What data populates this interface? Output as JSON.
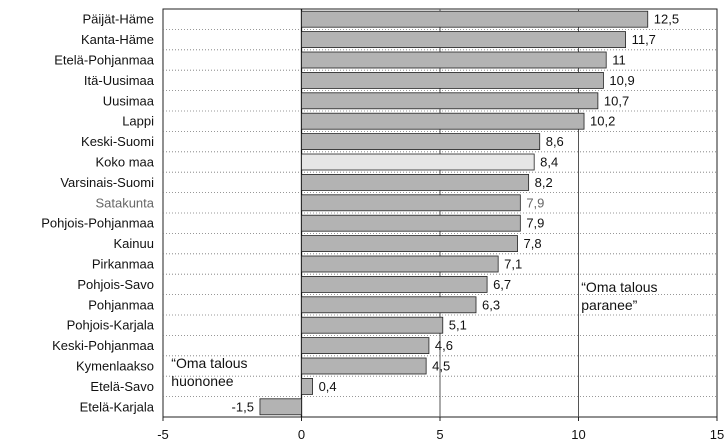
{
  "chart_data": {
    "type": "bar",
    "orientation": "horizontal",
    "categories": [
      "Päijät-Häme",
      "Kanta-Häme",
      "Etelä-Pohjanmaa",
      "Itä-Uusimaa",
      "Uusimaa",
      "Lappi",
      "Keski-Suomi",
      "Koko maa",
      "Varsinais-Suomi",
      "Satakunta",
      "Pohjois-Pohjanmaa",
      "Kainuu",
      "Pirkanmaa",
      "Pohjois-Savo",
      "Pohjanmaa",
      "Pohjois-Karjala",
      "Keski-Pohjanmaa",
      "Kymenlaakso",
      "Etelä-Savo",
      "Etelä-Karjala"
    ],
    "values": [
      12.5,
      11.7,
      11,
      10.9,
      10.7,
      10.2,
      8.6,
      8.4,
      8.2,
      7.9,
      7.9,
      7.8,
      7.1,
      6.7,
      6.3,
      5.1,
      4.6,
      4.5,
      0.4,
      -1.5
    ],
    "value_labels": [
      "12,5",
      "11,7",
      "11",
      "10,9",
      "10,7",
      "10,2",
      "8,6",
      "8,4",
      "8,2",
      "7,9",
      "7,9",
      "7,8",
      "7,1",
      "6,7",
      "6,3",
      "5,1",
      "4,6",
      "4,5",
      "0,4",
      "-1,5"
    ],
    "highlight_category": "Koko maa",
    "dim_category": "Satakunta",
    "xlim": [
      -5,
      15
    ],
    "xticks": [
      -5,
      0,
      5,
      10,
      15
    ],
    "xtick_labels": [
      "-5",
      "0",
      "5",
      "10",
      "15"
    ],
    "vertical_gridlines": [
      5,
      10
    ],
    "horizontal_gridlines": "dotted",
    "title": "",
    "xlabel": "",
    "ylabel": "",
    "annotations": [
      {
        "lines": [
          "“Oma talous",
          "paranee”"
        ]
      },
      {
        "lines": [
          "“Oma talous",
          "huononee"
        ]
      }
    ],
    "colors": {
      "bar": "#b3b3b3",
      "bar_highlight": "#e6e6e6",
      "bar_stroke": "#222222",
      "grid": "#555555"
    }
  }
}
